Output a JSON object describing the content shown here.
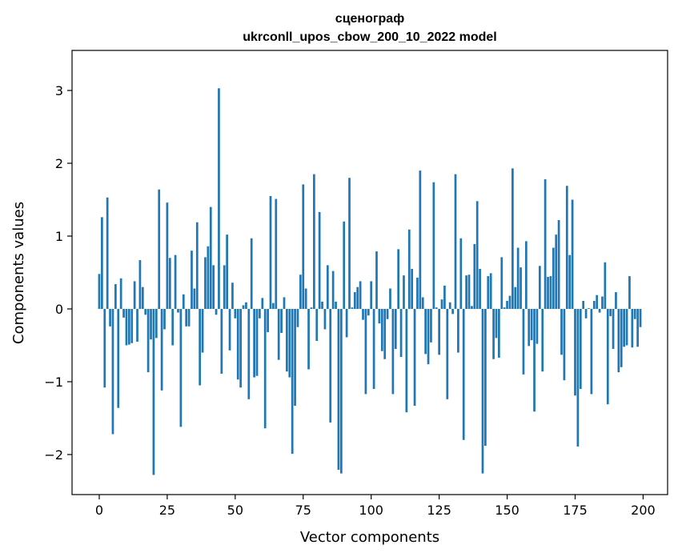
{
  "chart_data": {
    "type": "bar",
    "title_lines": [
      "сценограф",
      "ukrconll_upos_cbow_200_10_2022 model"
    ],
    "xlabel": "Vector components",
    "ylabel": "Components values",
    "xlim": [
      -10,
      209
    ],
    "ylim": [
      -2.55,
      3.55
    ],
    "xticks": [
      0,
      25,
      50,
      75,
      100,
      125,
      150,
      175,
      200
    ],
    "yticks": [
      -2,
      -1,
      0,
      1,
      2,
      3
    ],
    "ytick_labels": [
      "−2",
      "−1",
      "0",
      "1",
      "2",
      "3"
    ],
    "grid": false,
    "bar_color": "#1f77b4",
    "values": [
      0.48,
      1.26,
      -1.08,
      1.53,
      -0.24,
      -1.72,
      0.34,
      -1.36,
      0.42,
      -0.12,
      -0.5,
      -0.49,
      -0.47,
      0.38,
      -0.45,
      0.67,
      0.3,
      -0.08,
      -0.87,
      -0.42,
      -2.28,
      -0.4,
      1.64,
      -1.12,
      -0.28,
      1.46,
      0.7,
      -0.5,
      0.74,
      -0.05,
      -1.62,
      0.2,
      -0.24,
      -0.24,
      0.8,
      0.28,
      1.19,
      -1.05,
      -0.6,
      0.71,
      0.86,
      1.4,
      0.6,
      -0.08,
      3.03,
      -0.89,
      0.6,
      1.02,
      -0.57,
      0.36,
      -0.13,
      -0.97,
      -1.08,
      0.05,
      0.09,
      -1.24,
      0.97,
      -0.94,
      -0.92,
      -0.13,
      0.15,
      -1.64,
      -0.32,
      1.55,
      0.08,
      1.51,
      -0.7,
      -0.33,
      0.16,
      -0.86,
      -0.94,
      -1.99,
      -1.33,
      -0.25,
      0.47,
      1.71,
      0.28,
      -0.83,
      0.02,
      1.85,
      -0.44,
      1.33,
      0.1,
      -0.28,
      0.6,
      -1.56,
      0.52,
      0.1,
      -2.21,
      -2.26,
      1.2,
      -0.39,
      1.8,
      0.02,
      0.23,
      0.3,
      0.38,
      -0.15,
      -1.17,
      -0.09,
      0.38,
      -1.1,
      0.79,
      -0.2,
      -0.58,
      -0.69,
      -0.14,
      0.28,
      -1.17,
      -0.55,
      0.82,
      -0.66,
      0.46,
      -1.42,
      1.09,
      0.55,
      -1.33,
      0.43,
      1.9,
      0.16,
      -0.62,
      -0.76,
      -0.46,
      1.74,
      0.02,
      -0.63,
      0.13,
      0.32,
      -1.24,
      0.09,
      -0.07,
      1.85,
      -0.6,
      0.97,
      -1.8,
      0.46,
      0.47,
      0.04,
      0.89,
      1.48,
      0.55,
      -2.26,
      -1.88,
      0.45,
      0.49,
      -0.69,
      -0.4,
      -0.67,
      0.71,
      0.02,
      0.11,
      0.18,
      1.93,
      0.3,
      0.84,
      0.57,
      -0.9,
      0.93,
      -0.51,
      -0.43,
      -1.41,
      -0.48,
      0.59,
      -0.86,
      1.78,
      0.44,
      0.45,
      0.84,
      1.02,
      1.22,
      -0.63,
      -0.98,
      1.69,
      0.74,
      1.5,
      -1.19,
      -1.89,
      -1.1,
      0.11,
      -0.13,
      0.01,
      -1.17,
      0.11,
      0.19,
      -0.05,
      0.17,
      0.64,
      -1.31,
      -0.1,
      -0.55,
      0.23,
      -0.87,
      -0.8,
      -0.52,
      -0.5,
      0.45,
      -0.53,
      -0.14,
      -0.52,
      -0.25
    ]
  }
}
